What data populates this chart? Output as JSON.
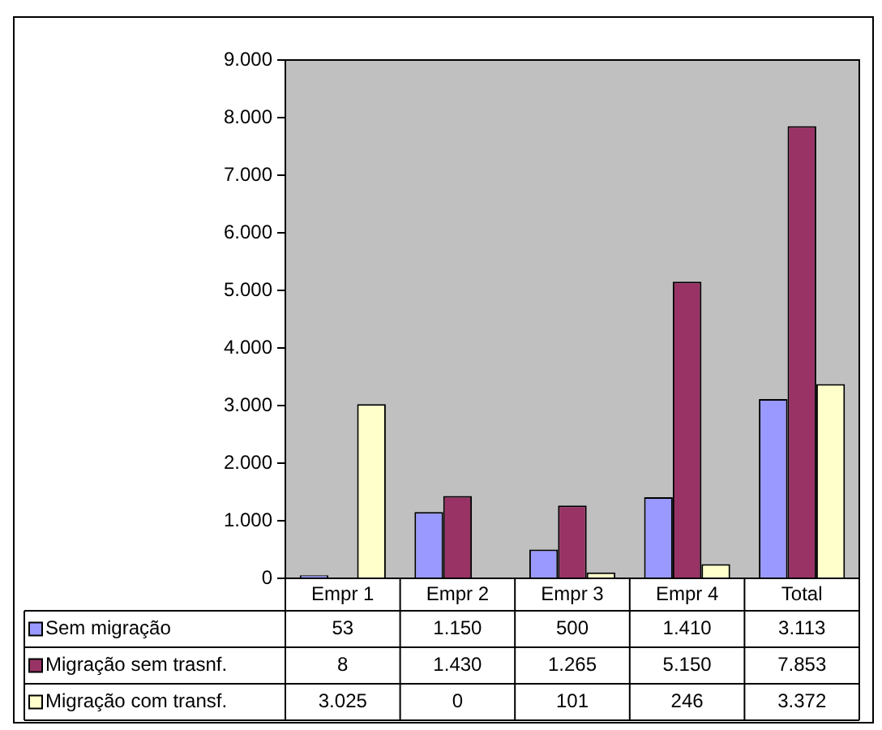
{
  "chart_data": {
    "type": "bar",
    "categories": [
      "Empr 1",
      "Empr 2",
      "Empr 3",
      "Empr 4",
      "Total"
    ],
    "series": [
      {
        "name": "Sem migração",
        "color": "#9999ff",
        "values": [
          53,
          1150,
          500,
          1410,
          3113
        ],
        "value_labels": [
          "53",
          "1.150",
          "500",
          "1.410",
          "3.113"
        ]
      },
      {
        "name": "Migração sem trasnf.",
        "color": "#993366",
        "values": [
          8,
          1430,
          1265,
          5150,
          7853
        ],
        "value_labels": [
          "8",
          "1.430",
          "1.265",
          "5.150",
          "7.853"
        ]
      },
      {
        "name": "Migração com transf.",
        "color": "#ffffcc",
        "values": [
          3025,
          0,
          101,
          246,
          3372
        ],
        "value_labels": [
          "3.025",
          "0",
          "101",
          "246",
          "3.372"
        ]
      }
    ],
    "ylim": [
      0,
      9000
    ],
    "yticks": [
      {
        "value": 0,
        "label": "0"
      },
      {
        "value": 1000,
        "label": "1.000"
      },
      {
        "value": 2000,
        "label": "2.000"
      },
      {
        "value": 3000,
        "label": "3.000"
      },
      {
        "value": 4000,
        "label": "4.000"
      },
      {
        "value": 5000,
        "label": "5.000"
      },
      {
        "value": 6000,
        "label": "6.000"
      },
      {
        "value": 7000,
        "label": "7.000"
      },
      {
        "value": 8000,
        "label": "8.000"
      },
      {
        "value": 9000,
        "label": "9.000"
      }
    ],
    "grid": false,
    "legend": "bottom left"
  }
}
